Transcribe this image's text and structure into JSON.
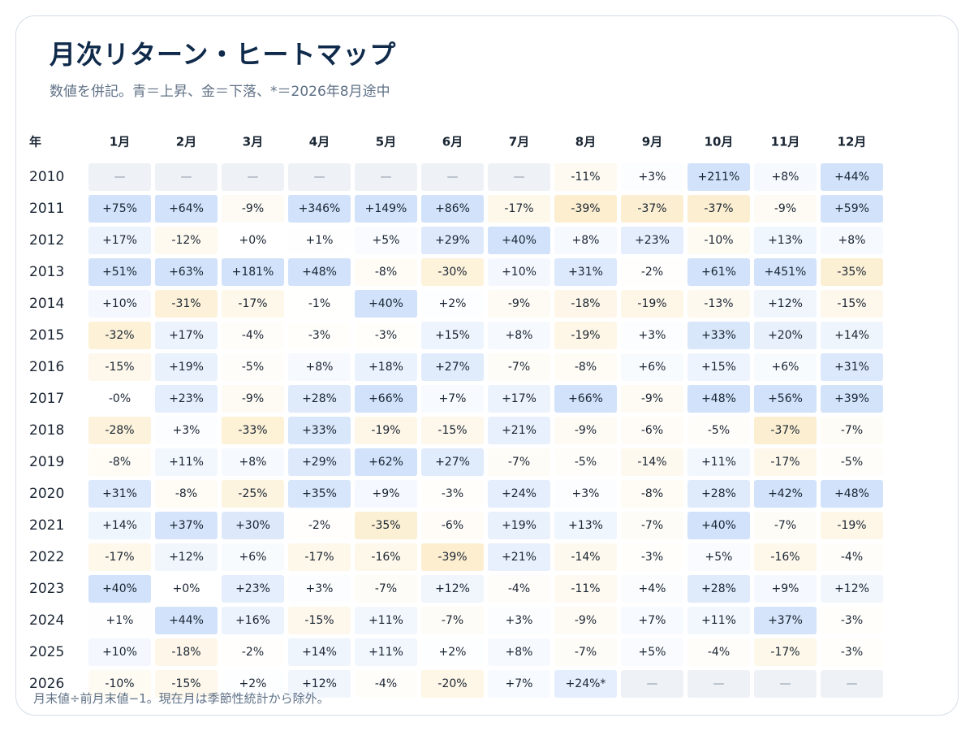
{
  "title": "月次リターン・ヒートマップ",
  "subtitle": "数値を併記。青＝上昇、金＝下落、*＝2026年8月途中",
  "footnote": "月末値÷前月末値−1。現在月は季節性統計から除外。",
  "colors": {
    "positive": "#2f7be6",
    "negative": "#f2b01e",
    "empty": "#eef2f6",
    "text": "#1a2533",
    "header": "#1a2533"
  },
  "chart_data": {
    "type": "heatmap",
    "title": "月次リターン・ヒートマップ",
    "subtitle": "数値を併記。青＝上昇、金＝下落、*＝2026年8月途中",
    "corner_label": "年",
    "columns": [
      "1月",
      "2月",
      "3月",
      "4月",
      "5月",
      "6月",
      "7月",
      "8月",
      "9月",
      "10月",
      "11月",
      "12月"
    ],
    "rows": [
      {
        "year": "2010",
        "cells": [
          "—",
          "—",
          "—",
          "—",
          "—",
          "—",
          "—",
          "-11%",
          "+3%",
          "+211%",
          "+8%",
          "+44%"
        ]
      },
      {
        "year": "2011",
        "cells": [
          "+75%",
          "+64%",
          "-9%",
          "+346%",
          "+149%",
          "+86%",
          "-17%",
          "-39%",
          "-37%",
          "-37%",
          "-9%",
          "+59%"
        ]
      },
      {
        "year": "2012",
        "cells": [
          "+17%",
          "-12%",
          "+0%",
          "+1%",
          "+5%",
          "+29%",
          "+40%",
          "+8%",
          "+23%",
          "-10%",
          "+13%",
          "+8%"
        ]
      },
      {
        "year": "2013",
        "cells": [
          "+51%",
          "+63%",
          "+181%",
          "+48%",
          "-8%",
          "-30%",
          "+10%",
          "+31%",
          "-2%",
          "+61%",
          "+451%",
          "-35%"
        ]
      },
      {
        "year": "2014",
        "cells": [
          "+10%",
          "-31%",
          "-17%",
          "-1%",
          "+40%",
          "+2%",
          "-9%",
          "-18%",
          "-19%",
          "-13%",
          "+12%",
          "-15%"
        ]
      },
      {
        "year": "2015",
        "cells": [
          "-32%",
          "+17%",
          "-4%",
          "-3%",
          "-3%",
          "+15%",
          "+8%",
          "-19%",
          "+3%",
          "+33%",
          "+20%",
          "+14%"
        ]
      },
      {
        "year": "2016",
        "cells": [
          "-15%",
          "+19%",
          "-5%",
          "+8%",
          "+18%",
          "+27%",
          "-7%",
          "-8%",
          "+6%",
          "+15%",
          "+6%",
          "+31%"
        ]
      },
      {
        "year": "2017",
        "cells": [
          "-0%",
          "+23%",
          "-9%",
          "+28%",
          "+66%",
          "+7%",
          "+17%",
          "+66%",
          "-9%",
          "+48%",
          "+56%",
          "+39%"
        ]
      },
      {
        "year": "2018",
        "cells": [
          "-28%",
          "+3%",
          "-33%",
          "+33%",
          "-19%",
          "-15%",
          "+21%",
          "-9%",
          "-6%",
          "-5%",
          "-37%",
          "-7%"
        ]
      },
      {
        "year": "2019",
        "cells": [
          "-8%",
          "+11%",
          "+8%",
          "+29%",
          "+62%",
          "+27%",
          "-7%",
          "-5%",
          "-14%",
          "+11%",
          "-17%",
          "-5%"
        ]
      },
      {
        "year": "2020",
        "cells": [
          "+31%",
          "-8%",
          "-25%",
          "+35%",
          "+9%",
          "-3%",
          "+24%",
          "+3%",
          "-8%",
          "+28%",
          "+42%",
          "+48%"
        ]
      },
      {
        "year": "2021",
        "cells": [
          "+14%",
          "+37%",
          "+30%",
          "-2%",
          "-35%",
          "-6%",
          "+19%",
          "+13%",
          "-7%",
          "+40%",
          "-7%",
          "-19%"
        ]
      },
      {
        "year": "2022",
        "cells": [
          "-17%",
          "+12%",
          "+6%",
          "-17%",
          "-16%",
          "-39%",
          "+21%",
          "-14%",
          "-3%",
          "+5%",
          "-16%",
          "-4%"
        ]
      },
      {
        "year": "2023",
        "cells": [
          "+40%",
          "+0%",
          "+23%",
          "+3%",
          "-7%",
          "+12%",
          "-4%",
          "-11%",
          "+4%",
          "+28%",
          "+9%",
          "+12%"
        ]
      },
      {
        "year": "2024",
        "cells": [
          "+1%",
          "+44%",
          "+16%",
          "-15%",
          "+11%",
          "-7%",
          "+3%",
          "-9%",
          "+7%",
          "+11%",
          "+37%",
          "-3%"
        ]
      },
      {
        "year": "2025",
        "cells": [
          "+10%",
          "-18%",
          "-2%",
          "+14%",
          "+11%",
          "+2%",
          "+8%",
          "-7%",
          "+5%",
          "-4%",
          "-17%",
          "-3%"
        ]
      },
      {
        "year": "2026",
        "cells": [
          "-10%",
          "-15%",
          "+2%",
          "+12%",
          "-4%",
          "-20%",
          "+7%",
          "+24%*",
          "—",
          "—",
          "—",
          "—"
        ]
      }
    ]
  }
}
